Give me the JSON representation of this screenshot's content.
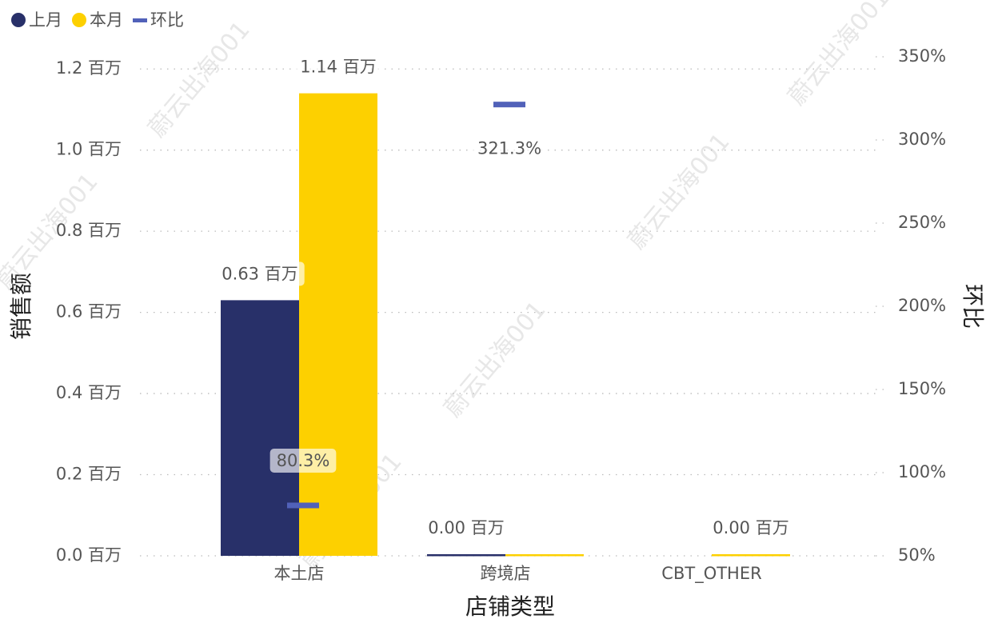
{
  "chart_data": {
    "type": "bar-line",
    "watermark": "蔚云出海001",
    "x_label": "店铺类型",
    "y_label": "销售额",
    "y2_label": "环比",
    "categories": [
      "本土店",
      "跨境店",
      "CBT_OTHER"
    ],
    "series": [
      {
        "name": "上月",
        "color": "#283069",
        "type": "bar",
        "values": [
          0.63,
          0.004,
          null
        ],
        "value_labels": [
          "0.63 百万",
          "0.00 百万",
          null
        ]
      },
      {
        "name": "本月",
        "color": "#fdd000",
        "type": "bar",
        "values": [
          1.14,
          0.004,
          0.004
        ],
        "value_labels": [
          "1.14 百万",
          null,
          "0.00 百万"
        ]
      },
      {
        "name": "环比",
        "color": "#5161b9",
        "type": "marker",
        "axis": "y2",
        "values": [
          80.3,
          321.3,
          null
        ],
        "value_labels": [
          "80.3%",
          "321.3%",
          null
        ]
      }
    ],
    "ylim": [
      0,
      1.23
    ],
    "yticks": [
      {
        "value": 0,
        "label": "0.0 百万"
      },
      {
        "value": 0.2,
        "label": "0.2 百万"
      },
      {
        "value": 0.4,
        "label": "0.4 百万"
      },
      {
        "value": 0.6,
        "label": "0.6 百万"
      },
      {
        "value": 0.8,
        "label": "0.8 百万"
      },
      {
        "value": 1.0,
        "label": "1.0 百万"
      },
      {
        "value": 1.2,
        "label": "1.2 百万"
      }
    ],
    "y2lim": [
      50,
      350
    ],
    "y2ticks": [
      {
        "value": 50,
        "label": "50%"
      },
      {
        "value": 100,
        "label": "100%"
      },
      {
        "value": 150,
        "label": "150%"
      },
      {
        "value": 200,
        "label": "200%"
      },
      {
        "value": 250,
        "label": "250%"
      },
      {
        "value": 300,
        "label": "300%"
      },
      {
        "value": 350,
        "label": "350%"
      }
    ],
    "grid": true,
    "legend": "top-left"
  }
}
